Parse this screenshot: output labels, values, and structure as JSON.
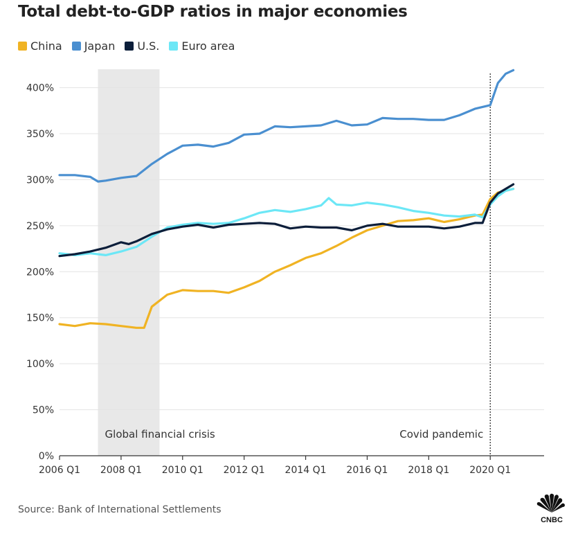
{
  "chart_data": {
    "type": "line",
    "title": "Total debt-to-GDP ratios in major economies",
    "xlabel": "",
    "ylabel": "",
    "x_range": [
      2006.0,
      2021.75
    ],
    "ylim": [
      0,
      420
    ],
    "y_ticks": [
      0,
      50,
      100,
      150,
      200,
      250,
      300,
      350,
      400
    ],
    "y_tick_labels": [
      "0%",
      "50%",
      "100%",
      "150%",
      "200%",
      "250%",
      "300%",
      "350%",
      "400%"
    ],
    "x_ticks": [
      2006,
      2008,
      2010,
      2012,
      2014,
      2016,
      2018,
      2020
    ],
    "x_tick_labels": [
      "2006 Q1",
      "2008 Q1",
      "2010 Q1",
      "2012 Q1",
      "2014 Q1",
      "2016 Q1",
      "2018 Q1",
      "2020 Q1"
    ],
    "grid": "horizontal",
    "legend_position": "top-left",
    "shaded_region": {
      "label": "Global financial crisis",
      "x_start": 2007.25,
      "x_end": 2009.25,
      "color": "#e8e8e8"
    },
    "vertical_marker": {
      "label": "Covid pandemic",
      "x": 2020.0
    },
    "series": [
      {
        "name": "China",
        "color": "#f0b323",
        "x": [
          2006.0,
          2006.5,
          2007.0,
          2007.5,
          2008.0,
          2008.5,
          2008.75,
          2009.0,
          2009.5,
          2010.0,
          2010.5,
          2011.0,
          2011.5,
          2012.0,
          2012.5,
          2013.0,
          2013.5,
          2014.0,
          2014.5,
          2015.0,
          2015.5,
          2016.0,
          2016.5,
          2017.0,
          2017.5,
          2018.0,
          2018.5,
          2019.0,
          2019.5,
          2019.75,
          2020.0,
          2020.25,
          2020.5,
          2020.75
        ],
        "values": [
          143,
          141,
          144,
          143,
          141,
          139,
          139,
          162,
          175,
          180,
          179,
          179,
          177,
          183,
          190,
          200,
          207,
          215,
          220,
          228,
          237,
          245,
          250,
          255,
          256,
          258,
          254,
          257,
          261,
          262,
          279,
          286,
          288,
          290
        ]
      },
      {
        "name": "Japan",
        "color": "#4a8fd0",
        "x": [
          2006.0,
          2006.5,
          2007.0,
          2007.25,
          2007.5,
          2008.0,
          2008.5,
          2009.0,
          2009.5,
          2010.0,
          2010.5,
          2011.0,
          2011.5,
          2012.0,
          2012.5,
          2013.0,
          2013.5,
          2014.0,
          2014.5,
          2015.0,
          2015.5,
          2016.0,
          2016.5,
          2017.0,
          2017.5,
          2018.0,
          2018.5,
          2019.0,
          2019.5,
          2020.0,
          2020.25,
          2020.5,
          2020.75
        ],
        "values": [
          305,
          305,
          303,
          298,
          299,
          302,
          304,
          317,
          328,
          337,
          338,
          336,
          340,
          349,
          350,
          358,
          357,
          358,
          359,
          364,
          359,
          360,
          367,
          366,
          366,
          365,
          365,
          370,
          377,
          381,
          405,
          415,
          419
        ]
      },
      {
        "name": "U.S.",
        "color": "#0c1e3a",
        "x": [
          2006.0,
          2006.5,
          2007.0,
          2007.5,
          2008.0,
          2008.25,
          2008.5,
          2009.0,
          2009.5,
          2010.0,
          2010.5,
          2011.0,
          2011.5,
          2012.0,
          2012.5,
          2013.0,
          2013.5,
          2014.0,
          2014.5,
          2015.0,
          2015.5,
          2016.0,
          2016.5,
          2017.0,
          2017.5,
          2018.0,
          2018.5,
          2019.0,
          2019.5,
          2019.75,
          2020.0,
          2020.25,
          2020.5,
          2020.75
        ],
        "values": [
          217,
          219,
          222,
          226,
          232,
          230,
          233,
          241,
          246,
          249,
          251,
          248,
          251,
          252,
          253,
          252,
          247,
          249,
          248,
          248,
          245,
          250,
          252,
          249,
          249,
          249,
          247,
          249,
          253,
          253,
          275,
          285,
          290,
          295
        ]
      },
      {
        "name": "Euro area",
        "color": "#6ce7f6",
        "x": [
          2006.0,
          2006.5,
          2007.0,
          2007.5,
          2008.0,
          2008.5,
          2009.0,
          2009.5,
          2010.0,
          2010.5,
          2011.0,
          2011.5,
          2012.0,
          2012.5,
          2013.0,
          2013.5,
          2014.0,
          2014.5,
          2014.75,
          2015.0,
          2015.5,
          2016.0,
          2016.5,
          2017.0,
          2017.5,
          2018.0,
          2018.5,
          2019.0,
          2019.5,
          2019.75,
          2020.0,
          2020.25,
          2020.5,
          2020.75
        ],
        "values": [
          220,
          218,
          220,
          218,
          222,
          227,
          238,
          248,
          251,
          253,
          252,
          253,
          258,
          264,
          267,
          265,
          268,
          272,
          280,
          273,
          272,
          275,
          273,
          270,
          266,
          264,
          261,
          260,
          262,
          259,
          273,
          282,
          288,
          290
        ]
      }
    ]
  },
  "source": "Source: Bank of International Settlements",
  "logo": {
    "name": "CNBC",
    "text": "CNBC"
  }
}
